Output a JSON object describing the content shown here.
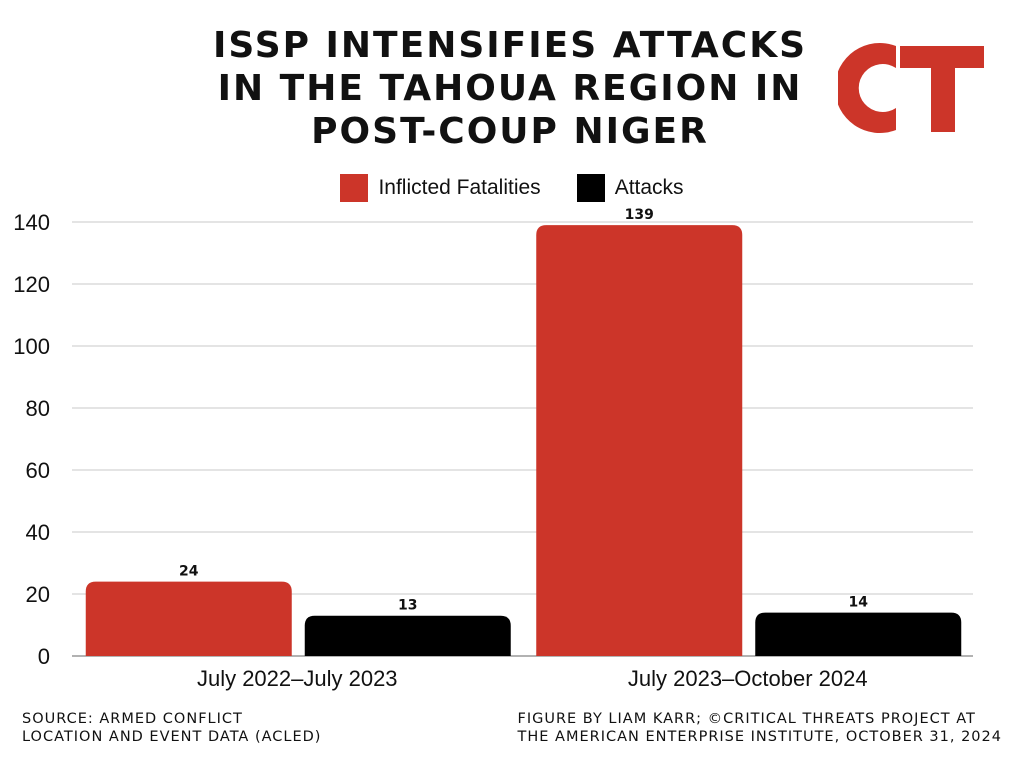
{
  "title_lines": [
    "ISSP INTENSIFIES ATTACKS",
    "IN THE TAHOUA REGION IN",
    "POST-COUP NIGER"
  ],
  "logo_text": "CT",
  "colors": {
    "fatalities": "#cc3529",
    "attacks": "#000000",
    "logo": "#cc3529"
  },
  "chart_data": {
    "type": "bar",
    "categories": [
      "July 2022–July 2023",
      "July 2023–October 2024"
    ],
    "series": [
      {
        "name": "Inflicted Fatalities",
        "values": [
          24,
          139
        ],
        "color": "#cc3529"
      },
      {
        "name": "Attacks",
        "values": [
          13,
          14
        ],
        "color": "#000000"
      }
    ],
    "data_labels": [
      [
        "24",
        "139"
      ],
      [
        "13",
        "14"
      ]
    ],
    "ylim": [
      0,
      140
    ],
    "yticks": [
      0,
      20,
      40,
      60,
      80,
      100,
      120,
      140
    ],
    "grid": true,
    "legend_position": "top-center"
  },
  "footer": {
    "source_lines": [
      "SOURCE: ARMED CONFLICT",
      "LOCATION AND EVENT DATA (ACLED)"
    ],
    "credit_lines": [
      "FIGURE BY LIAM KARR; ©CRITICAL THREATS PROJECT AT",
      "THE AMERICAN ENTERPRISE INSTITUTE, OCTOBER 31, 2024"
    ]
  }
}
